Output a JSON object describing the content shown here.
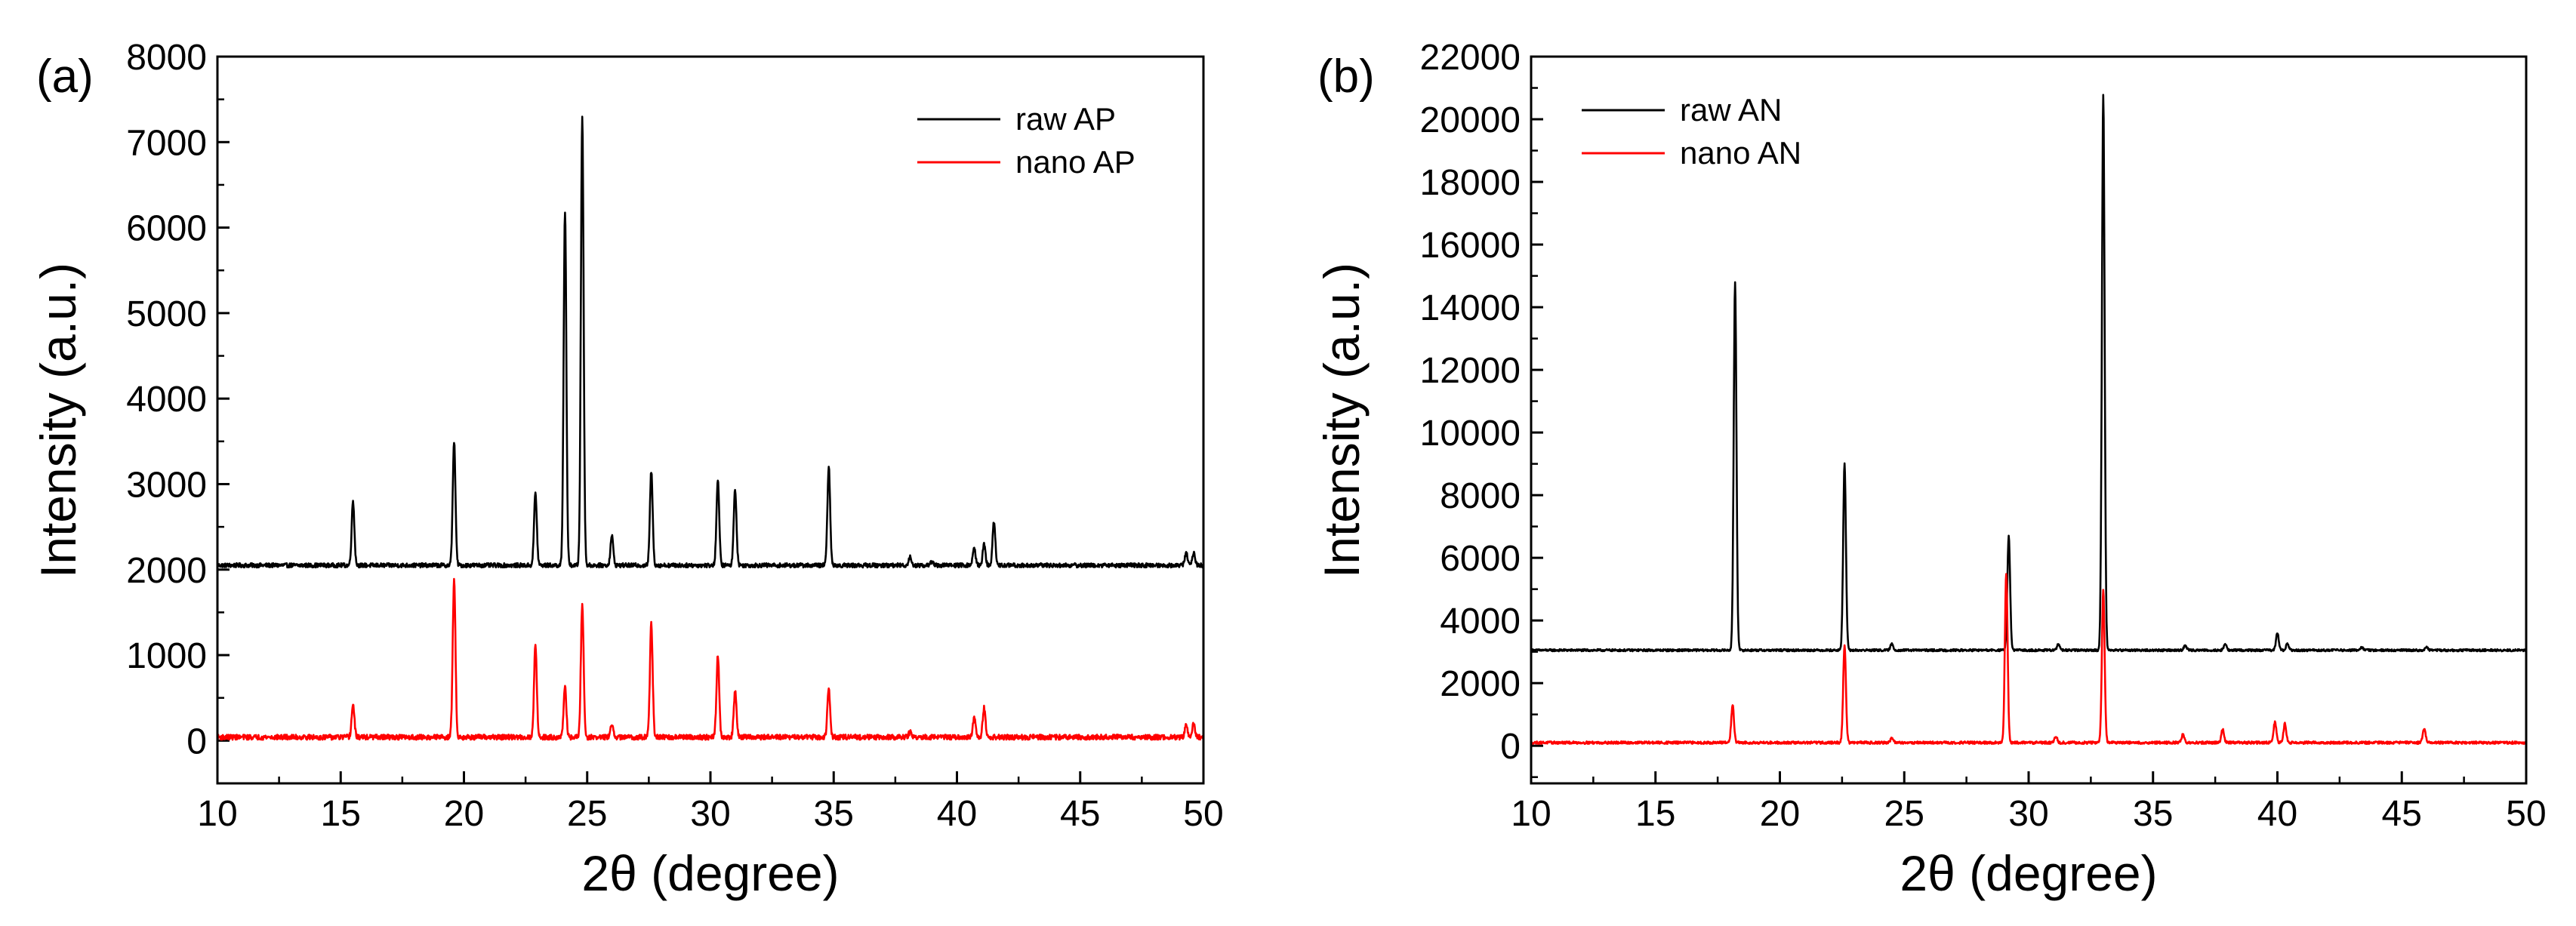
{
  "chart_data": [
    {
      "type": "line",
      "panel_label": "(a)",
      "title": "",
      "xlabel": "2θ (degree)",
      "ylabel": "Intensity (a.u.)",
      "xlim": [
        10,
        50
      ],
      "ylim": [
        -500,
        8000
      ],
      "xticks": [
        10,
        15,
        20,
        25,
        30,
        35,
        40,
        45,
        50
      ],
      "yticks": [
        0,
        1000,
        2000,
        3000,
        4000,
        5000,
        6000,
        7000,
        8000
      ],
      "legend_position": "top-right",
      "series": [
        {
          "name": "raw AP",
          "color": "#000000",
          "baseline": 2050,
          "noise": 25,
          "peaks": [
            [
              15.5,
              2800
            ],
            [
              19.6,
              3500
            ],
            [
              22.9,
              2900
            ],
            [
              24.1,
              6200
            ],
            [
              24.8,
              7300
            ],
            [
              26.0,
              2400
            ],
            [
              27.6,
              3150
            ],
            [
              30.3,
              3050
            ],
            [
              31.0,
              2950
            ],
            [
              34.8,
              3200
            ],
            [
              38.1,
              2150
            ],
            [
              39.0,
              2100
            ],
            [
              40.7,
              2250
            ],
            [
              41.1,
              2300
            ],
            [
              41.5,
              2550
            ],
            [
              49.3,
              2200
            ],
            [
              49.6,
              2200
            ]
          ]
        },
        {
          "name": "nano AP",
          "color": "#ff0000",
          "baseline": 40,
          "noise": 30,
          "peaks": [
            [
              15.5,
              420
            ],
            [
              19.6,
              1900
            ],
            [
              22.9,
              1130
            ],
            [
              24.1,
              620
            ],
            [
              24.8,
              1600
            ],
            [
              26.0,
              180
            ],
            [
              27.6,
              1380
            ],
            [
              30.3,
              1000
            ],
            [
              31.0,
              580
            ],
            [
              34.8,
              610
            ],
            [
              38.1,
              100
            ],
            [
              40.7,
              260
            ],
            [
              41.1,
              380
            ],
            [
              49.3,
              180
            ],
            [
              49.6,
              200
            ]
          ]
        }
      ]
    },
    {
      "type": "line",
      "panel_label": "(b)",
      "title": "",
      "xlabel": "2θ (degree)",
      "ylabel": "Intensity (a.u.)",
      "xlim": [
        10,
        50
      ],
      "ylim": [
        -1200,
        22000
      ],
      "xticks": [
        10,
        15,
        20,
        25,
        30,
        35,
        40,
        45,
        50
      ],
      "yticks": [
        0,
        2000,
        4000,
        6000,
        8000,
        10000,
        12000,
        14000,
        16000,
        18000,
        20000,
        22000
      ],
      "legend_position": "top-left",
      "series": [
        {
          "name": "raw AN",
          "color": "#000000",
          "baseline": 3050,
          "noise": 35,
          "peaks": [
            [
              18.2,
              14800
            ],
            [
              22.6,
              9000
            ],
            [
              24.5,
              3250
            ],
            [
              29.2,
              6700
            ],
            [
              31.2,
              3250
            ],
            [
              33.0,
              20800
            ],
            [
              36.3,
              3200
            ],
            [
              37.9,
              3250
            ],
            [
              40.0,
              3600
            ],
            [
              40.4,
              3250
            ],
            [
              43.4,
              3150
            ],
            [
              46.0,
              3150
            ]
          ]
        },
        {
          "name": "nano AN",
          "color": "#ff0000",
          "baseline": 100,
          "noise": 40,
          "peaks": [
            [
              18.1,
              1300
            ],
            [
              22.6,
              3200
            ],
            [
              24.5,
              250
            ],
            [
              29.1,
              5500
            ],
            [
              31.1,
              300
            ],
            [
              33.0,
              5000
            ],
            [
              36.2,
              350
            ],
            [
              37.8,
              520
            ],
            [
              39.9,
              750
            ],
            [
              40.3,
              700
            ],
            [
              45.9,
              550
            ]
          ]
        }
      ]
    }
  ]
}
